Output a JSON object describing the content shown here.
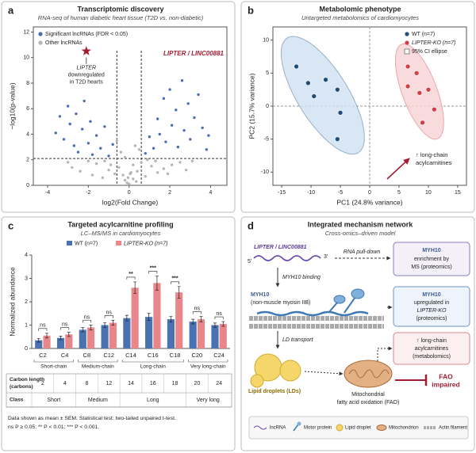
{
  "chart_data": [
    {
      "type": "scatter",
      "panel_label": "a",
      "title": "Transcriptomic discovery",
      "subtitle": "RNA-seq of human diabetic heart tissue (T2D vs. non-diabetic)",
      "x_label": "log2(Fold Change)",
      "y_label": "−log10(p-value)",
      "xlim": [
        -4.7,
        4.8
      ],
      "xticks": [
        -4,
        -2,
        0,
        2,
        4
      ],
      "ylim": [
        0,
        12.4
      ],
      "yticks": [
        0,
        2,
        4,
        6,
        8,
        10,
        12
      ],
      "legend": "top-left",
      "thresholds": {
        "x": [
          -0.6,
          0.6
        ],
        "y": 2.1
      },
      "series": [
        {
          "name": "Significant lncRNAs (FDR < 0.05)",
          "color": "#4a6fb5",
          "x": [
            -3.6,
            -3.4,
            -3.2,
            -3.0,
            -2.9,
            -2.7,
            -2.6,
            -2.5,
            -2.3,
            -2.2,
            -2.0,
            -1.9,
            -1.8,
            -1.6,
            -1.4,
            -1.2,
            -1.0,
            -0.8,
            0.8,
            1.0,
            1.2,
            1.4,
            1.5,
            1.7,
            1.8,
            2.0,
            2.1,
            2.3,
            2.4,
            2.6,
            2.7,
            2.9,
            3.0,
            3.2,
            3.4,
            3.6,
            3.8,
            3.9
          ],
          "values": [
            4.1,
            5.4,
            3.6,
            6.2,
            4.8,
            3.1,
            5.6,
            2.6,
            4.4,
            6.6,
            3.3,
            5.0,
            2.4,
            3.9,
            2.9,
            4.6,
            2.3,
            3.2,
            2.5,
            3.8,
            2.9,
            5.2,
            4.0,
            6.8,
            3.4,
            7.5,
            4.7,
            5.9,
            3.0,
            8.2,
            4.3,
            6.4,
            3.6,
            5.3,
            7.1,
            4.5,
            2.8,
            3.9
          ]
        },
        {
          "name": "Other lncRNAs",
          "color": "#b5b5b5",
          "x": [
            -0.1,
            0.2,
            -0.3,
            0.4,
            -0.5,
            0.6,
            -0.2,
            0.1,
            -0.7,
            0.8,
            -1.0,
            1.1,
            -1.3,
            1.4,
            -1.6,
            1.7,
            -2.0,
            2.1,
            -2.4,
            2.5,
            -0.4,
            0.3,
            -0.2,
            0.5,
            -0.6,
            0.2,
            -0.9,
            0.9,
            -1.2,
            1.3,
            0.0,
            -0.05,
            0.05,
            1.9,
            -1.8,
            2.8,
            -2.8,
            3.1,
            -3.0,
            0.35
          ],
          "values": [
            0.2,
            0.5,
            0.8,
            1.1,
            1.4,
            1.8,
            0.4,
            1.0,
            0.9,
            0.7,
            1.2,
            1.5,
            0.6,
            1.0,
            1.7,
            1.3,
            1.9,
            1.6,
            1.1,
            1.8,
            2.6,
            3.1,
            2.2,
            2.8,
            3.5,
            1.6,
            1.6,
            2.0,
            1.9,
            1.9,
            0.1,
            0.6,
            0.9,
            0.9,
            0.8,
            1.2,
            1.4,
            1.9,
            1.8,
            0.3
          ]
        }
      ],
      "highlight": {
        "label": "LIPTER / LINC00881",
        "x": -2.1,
        "y": 10.5,
        "color": "#a51c30",
        "note": [
          "LIPTER",
          "downregulated",
          "in T2D hearts"
        ]
      }
    },
    {
      "type": "scatter",
      "panel_label": "b",
      "title": "Metabolomic phenotype",
      "subtitle": "Untargeted metabolomics of cardiomyocytes",
      "x_label": "PC1 (24.8% variance)",
      "y_label": "PC2 (15.7% variance)",
      "xlim": [
        -16.5,
        16.5
      ],
      "xticks": [
        -15,
        -10,
        -5,
        0,
        5,
        10,
        15
      ],
      "ylim": [
        -12,
        12
      ],
      "yticks": [
        -10,
        -5,
        0,
        5,
        10
      ],
      "legend": "top-right",
      "zero_lines": true,
      "ci_ellipse": true,
      "ellipse_label": "95% CI ellipse",
      "series": [
        {
          "name": "WT (n=7)",
          "color": "#1f4e79",
          "ellipse_color": "#cfe0f1",
          "x": [
            -12.5,
            -10.5,
            -9.5,
            -7.5,
            -5.5,
            -5.0,
            -5.5
          ],
          "values": [
            6.0,
            3.5,
            1.5,
            4.0,
            2.5,
            -1.0,
            -5.0
          ]
        },
        {
          "name": "LIPTER-KO (n=7)",
          "color": "#d13f4b",
          "ellipse_color": "#f6d3d5",
          "x": [
            6.5,
            8.0,
            6.5,
            8.5,
            10.0,
            11.0,
            9.0
          ],
          "values": [
            6.0,
            5.0,
            3.0,
            2.0,
            2.5,
            -0.5,
            -2.5
          ]
        }
      ],
      "annotation": {
        "lines": [
          "↑ long-chain",
          "acylcarnitines"
        ],
        "color": "#a51c30"
      }
    },
    {
      "type": "bar",
      "panel_label": "c",
      "title": "Targeted acylcarnitine profiling",
      "subtitle": "LC–MS/MS in cardiomyocytes",
      "y_label": "Normalized abundance",
      "categories": [
        "C2",
        "C4",
        "C8",
        "C12",
        "C14",
        "C16",
        "C18",
        "C20",
        "C24"
      ],
      "ylim": [
        0,
        4
      ],
      "yticks": [
        0,
        1,
        2,
        3,
        4
      ],
      "series": [
        {
          "name": "WT (n=7)",
          "color": "#4a72b0",
          "values": [
            0.35,
            0.45,
            0.8,
            1.0,
            1.3,
            1.35,
            1.25,
            1.15,
            1.0
          ],
          "errors": [
            0.08,
            0.08,
            0.09,
            0.1,
            0.12,
            0.15,
            0.12,
            0.1,
            0.09
          ]
        },
        {
          "name": "LIPTER-KO (n=7)",
          "color": "#e8868a",
          "values": [
            0.55,
            0.6,
            0.9,
            1.1,
            2.6,
            2.8,
            2.4,
            1.25,
            1.05
          ],
          "errors": [
            0.1,
            0.09,
            0.1,
            0.1,
            0.25,
            0.3,
            0.25,
            0.12,
            0.1
          ]
        }
      ],
      "significance": [
        "ns",
        "ns",
        "ns",
        "ns",
        "**",
        "***",
        "***",
        "ns",
        "ns"
      ],
      "groups": [
        {
          "label": "Short-chain",
          "members": [
            "C2",
            "C4"
          ]
        },
        {
          "label": "Medium-chain",
          "members": [
            "C8",
            "C12"
          ]
        },
        {
          "label": "Long-chain",
          "members": [
            "C14",
            "C16",
            "C18"
          ]
        },
        {
          "label": "Very long-chain",
          "members": [
            "C20",
            "C24"
          ]
        }
      ],
      "table": {
        "rows": [
          {
            "header": [
              "Carbon length",
              "(carbons)"
            ],
            "cells": [
              2,
              4,
              8,
              12,
              14,
              16,
              18,
              20,
              24
            ]
          },
          {
            "header": [
              "Class"
            ],
            "cells": [
              {
                "text": "Short",
                "members": [
                  "C2",
                  "C4"
                ]
              },
              {
                "text": "Medium",
                "members": [
                  "C8",
                  "C12"
                ]
              },
              {
                "text": "Long",
                "members": [
                  "C14",
                  "C16",
                  "C18"
                ]
              },
              {
                "text": "Very long",
                "members": [
                  "C20",
                  "C24"
                ]
              }
            ]
          }
        ]
      },
      "footnote": [
        "Data shown as mean ± SEM. Statistical test: two-tailed unpaired t-test.",
        "ns P ≥ 0.05; ** P < 0.01; *** P < 0.001."
      ]
    }
  ],
  "diagram": {
    "panel_label": "d",
    "title": "Integrated mechanism network",
    "subtitle": "Cross-omics–driven model",
    "lncrna": {
      "label": "LIPTER / LINC00881",
      "five": "5'",
      "three": "3'"
    },
    "edges": {
      "pull_down": "RNA pull-down",
      "binding": "MYH10 binding",
      "transport": "LD transport"
    },
    "myh10": {
      "name": "MYH10",
      "detail": "(non-muscle myosin IIB)"
    },
    "boxes": [
      {
        "lines": [
          "MYH10",
          "enrichment by",
          "MS (proteomics)"
        ]
      },
      {
        "lines": [
          "MYH10",
          "upregulated in",
          "LIPTER-KO",
          "(proteomics)"
        ]
      },
      {
        "lines": [
          "↑ long-chain",
          "acylcarnitines",
          "(metabolomics)"
        ]
      }
    ],
    "lipid": "Lipid droplets (LDs)",
    "mito": [
      "Mitochondrial",
      "fatty acid oxidation (FAO)"
    ],
    "outcome": [
      "FAO",
      "impaired"
    ],
    "legend": [
      "lncRNA",
      "Motor protein",
      "Lipid droplet",
      "Mitochondrion",
      "Actin filament"
    ]
  }
}
